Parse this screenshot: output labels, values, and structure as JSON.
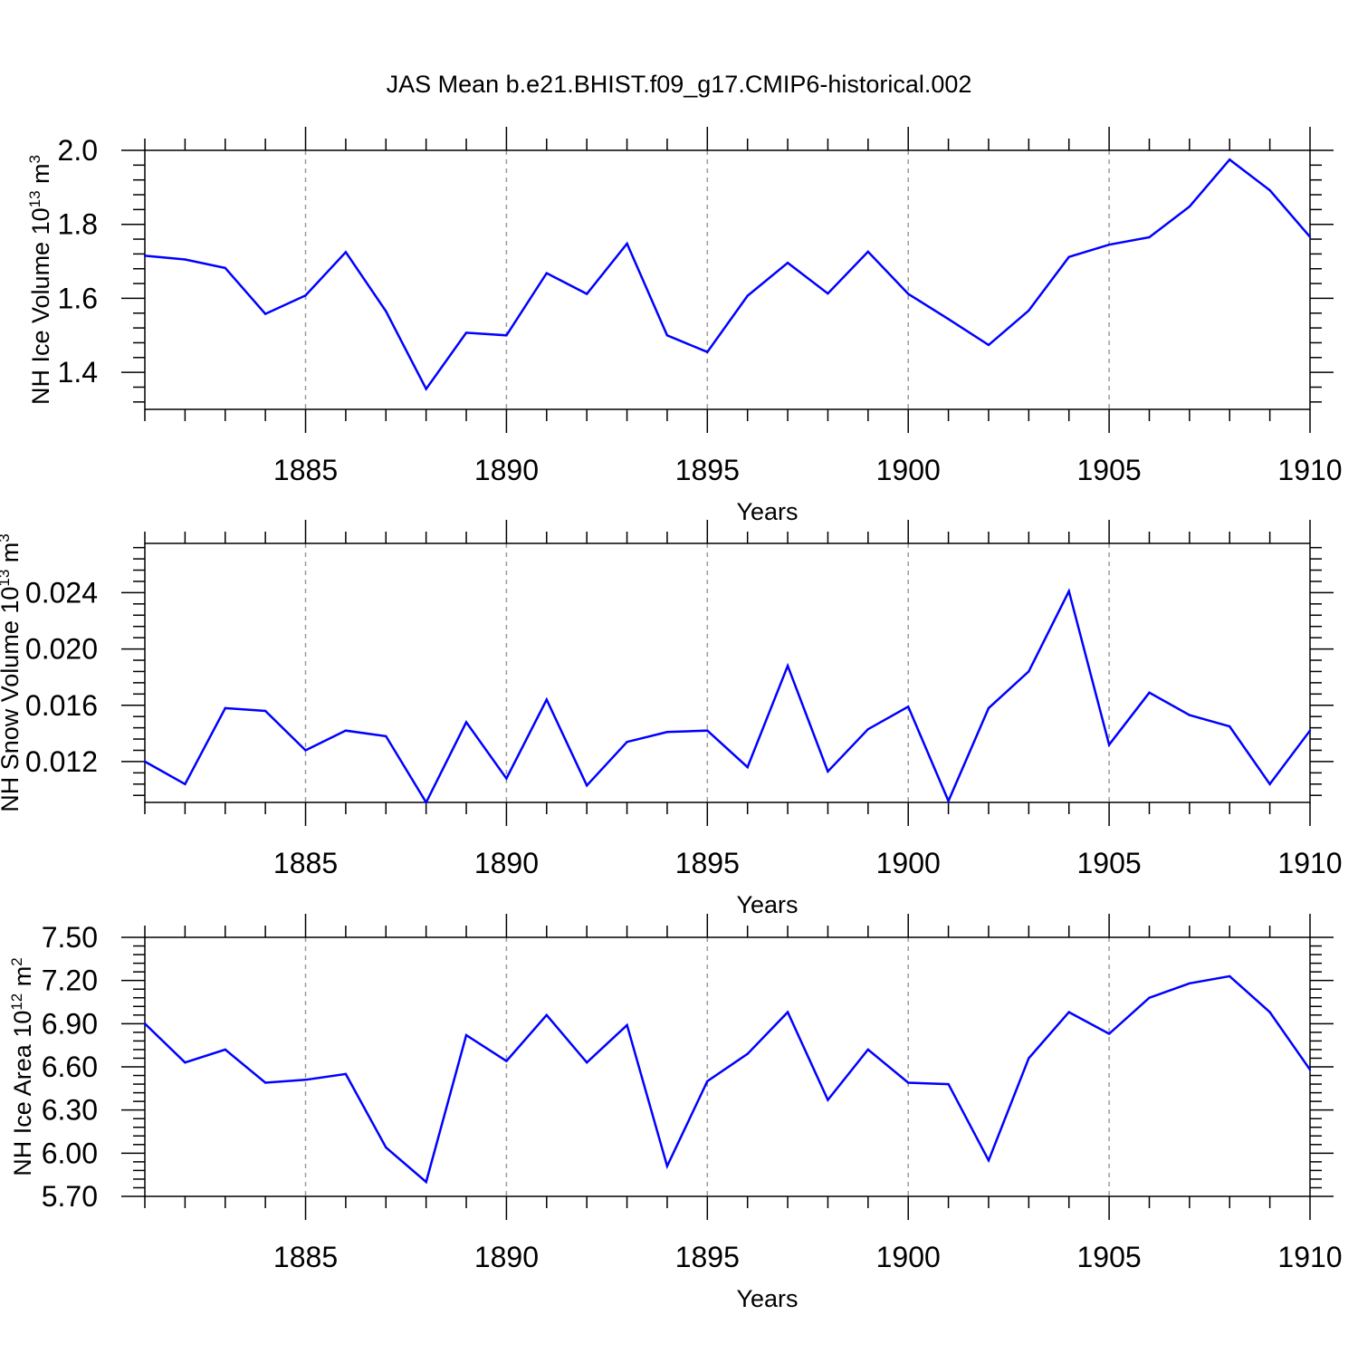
{
  "title": "JAS Mean b.e21.BHIST.f09_g17.CMIP6-historical.002",
  "line_color": "#0000ff",
  "chart_data": [
    {
      "type": "line",
      "title": "JAS Mean b.e21.BHIST.f09_g17.CMIP6-historical.002",
      "ylabel": "NH Ice Volume 10",
      "ylabel_sup": "13",
      "ylabel_unit": " m",
      "ylabel_unit_sup": "3",
      "xlabel": "Years",
      "xlim": [
        1881,
        1910
      ],
      "ylim": [
        1.3,
        2.0
      ],
      "xticks": [
        1885,
        1890,
        1895,
        1900,
        1905,
        1910
      ],
      "xtick_labels": [
        "1885",
        "1890",
        "1895",
        "1900",
        "1905",
        "1910"
      ],
      "yticks": [
        1.4,
        1.6,
        1.8,
        2.0
      ],
      "ytick_labels": [
        "1.4",
        "1.6",
        "1.8",
        "2.0"
      ],
      "x": [
        1881,
        1882,
        1883,
        1884,
        1885,
        1886,
        1887,
        1888,
        1889,
        1890,
        1891,
        1892,
        1893,
        1894,
        1895,
        1896,
        1897,
        1898,
        1899,
        1900,
        1901,
        1902,
        1903,
        1904,
        1905,
        1906,
        1907,
        1908,
        1909,
        1910
      ],
      "values": [
        1.715,
        1.705,
        1.682,
        1.558,
        1.608,
        1.725,
        1.565,
        1.355,
        1.507,
        1.5,
        1.668,
        1.612,
        1.748,
        1.5,
        1.455,
        1.607,
        1.696,
        1.613,
        1.726,
        1.612,
        1.544,
        1.474,
        1.567,
        1.712,
        1.745,
        1.765,
        1.848,
        1.975,
        1.892,
        1.766
      ],
      "grid": "dashed vertical at major x ticks"
    },
    {
      "type": "line",
      "ylabel": "NH Snow Volume 10",
      "ylabel_sup": "13",
      "ylabel_unit": " m",
      "ylabel_unit_sup": "3",
      "xlabel": "Years",
      "xlim": [
        1881,
        1910
      ],
      "ylim": [
        0.0091,
        0.0275
      ],
      "xticks": [
        1885,
        1890,
        1895,
        1900,
        1905,
        1910
      ],
      "xtick_labels": [
        "1885",
        "1890",
        "1895",
        "1900",
        "1905",
        "1910"
      ],
      "yticks": [
        0.012,
        0.016,
        0.02,
        0.024
      ],
      "ytick_labels": [
        "0.012",
        "0.016",
        "0.020",
        "0.024"
      ],
      "x": [
        1881,
        1882,
        1883,
        1884,
        1885,
        1886,
        1887,
        1888,
        1889,
        1890,
        1891,
        1892,
        1893,
        1894,
        1895,
        1896,
        1897,
        1898,
        1899,
        1900,
        1901,
        1902,
        1903,
        1904,
        1905,
        1906,
        1907,
        1908,
        1909,
        1910
      ],
      "values": [
        0.012,
        0.0104,
        0.0158,
        0.0156,
        0.0128,
        0.0142,
        0.0138,
        0.0091,
        0.0148,
        0.0108,
        0.0164,
        0.0103,
        0.0134,
        0.0141,
        0.0142,
        0.0116,
        0.0188,
        0.0113,
        0.0143,
        0.0159,
        0.0092,
        0.0158,
        0.0184,
        0.0241,
        0.0132,
        0.0169,
        0.0153,
        0.0145,
        0.0104,
        0.0142
      ],
      "grid": "dashed vertical at major x ticks"
    },
    {
      "type": "line",
      "ylabel": "NH Ice Area 10",
      "ylabel_sup": "12",
      "ylabel_unit": " m",
      "ylabel_unit_sup": "2",
      "xlabel": "Years",
      "xlim": [
        1881,
        1910
      ],
      "ylim": [
        5.7,
        7.5
      ],
      "xticks": [
        1885,
        1890,
        1895,
        1900,
        1905,
        1910
      ],
      "xtick_labels": [
        "1885",
        "1890",
        "1895",
        "1900",
        "1905",
        "1910"
      ],
      "yticks": [
        5.7,
        6.0,
        6.3,
        6.6,
        6.9,
        7.2,
        7.5
      ],
      "ytick_labels": [
        "5.70",
        "6.00",
        "6.30",
        "6.60",
        "6.90",
        "7.20",
        "7.50"
      ],
      "x": [
        1881,
        1882,
        1883,
        1884,
        1885,
        1886,
        1887,
        1888,
        1889,
        1890,
        1891,
        1892,
        1893,
        1894,
        1895,
        1896,
        1897,
        1898,
        1899,
        1900,
        1901,
        1902,
        1903,
        1904,
        1905,
        1906,
        1907,
        1908,
        1909,
        1910
      ],
      "values": [
        6.9,
        6.63,
        6.72,
        6.49,
        6.51,
        6.55,
        6.04,
        5.8,
        6.82,
        6.64,
        6.96,
        6.63,
        6.89,
        5.91,
        6.5,
        6.69,
        6.98,
        6.37,
        6.72,
        6.49,
        6.48,
        5.95,
        6.66,
        6.98,
        6.83,
        7.08,
        7.18,
        7.23,
        6.98,
        6.58
      ],
      "grid": "dashed vertical at major x ticks"
    }
  ]
}
